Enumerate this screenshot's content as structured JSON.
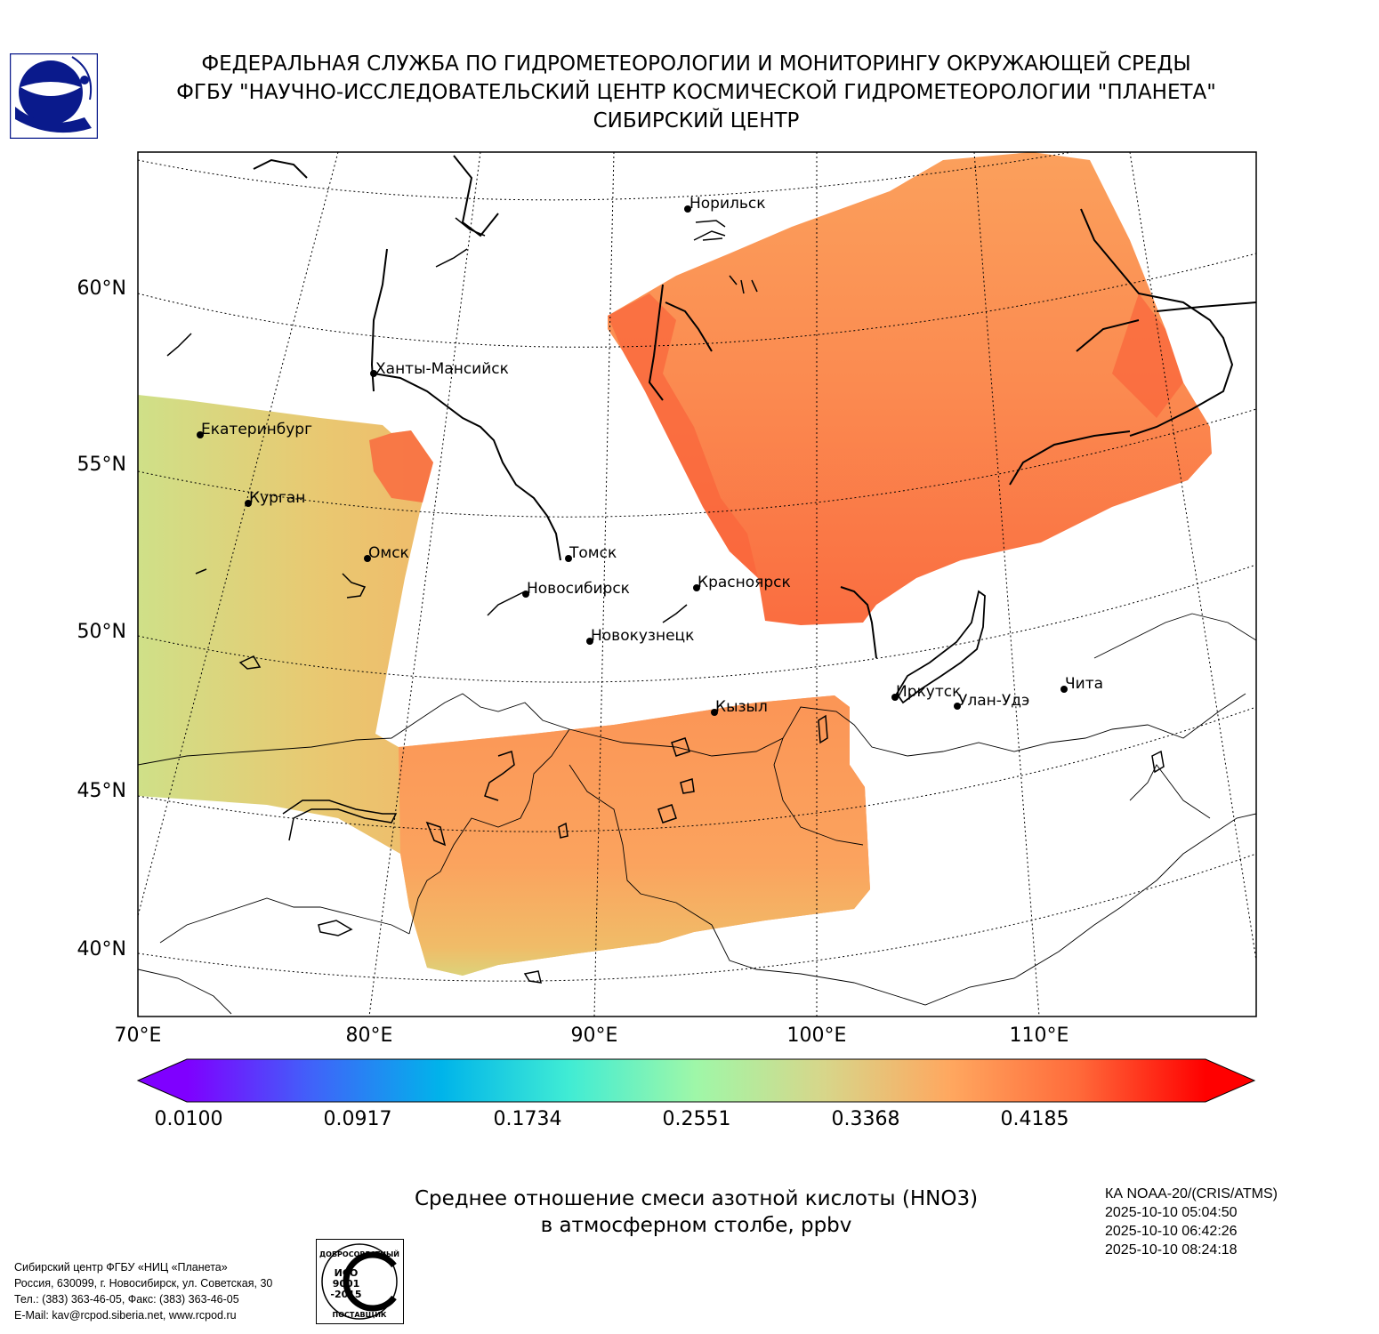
{
  "header": {
    "line1": "ФЕДЕРАЛЬНАЯ СЛУЖБА ПО ГИДРОМЕТЕОРОЛОГИИ И МОНИТОРИНГУ ОКРУЖАЮЩЕЙ СРЕДЫ",
    "line2": "ФГБУ \"НАУЧНО-ИССЛЕДОВАТЕЛЬСКИЙ ЦЕНТР КОСМИЧЕСКОЙ ГИДРОМЕТЕОРОЛОГИИ \"ПЛАНЕТА\"",
    "line3": "СИБИРСКИЙ ЦЕНТР"
  },
  "map": {
    "lat_labels": [
      "60°N",
      "55°N",
      "50°N",
      "45°N",
      "40°N"
    ],
    "lon_labels": [
      "70°E",
      "80°E",
      "90°E",
      "100°E",
      "110°E"
    ],
    "cities": [
      {
        "name": "Норильск"
      },
      {
        "name": "Ханты-Мансийск"
      },
      {
        "name": "Екатеринбург"
      },
      {
        "name": "Курган"
      },
      {
        "name": "Омск"
      },
      {
        "name": "Томск"
      },
      {
        "name": "Новосибирск"
      },
      {
        "name": "Красноярск"
      },
      {
        "name": "Новокузнецк"
      },
      {
        "name": "Кызыл"
      },
      {
        "name": "Иркутск"
      },
      {
        "name": "Улан-Удэ"
      },
      {
        "name": "Чита"
      }
    ]
  },
  "colorbar": {
    "ticks": [
      "0.0100",
      "0.0917",
      "0.1734",
      "0.2551",
      "0.3368",
      "0.4185"
    ],
    "colors": [
      "#7f00ff",
      "#3f64f9",
      "#00b4ea",
      "#40ecd4",
      "#9ff7a8",
      "#d7d68a",
      "#ffa75f",
      "#ff6a3a",
      "#ff0000"
    ]
  },
  "caption": {
    "line1": "Среднее отношение смеси азотной кислоты (HNO3)",
    "line2": "в атмосферном столбе, ppbv"
  },
  "satellite": {
    "name": "КА NOAA-20/(CRIS/ATMS)",
    "times": [
      "2025-10-10 05:04:50",
      "2025-10-10 06:42:26",
      "2025-10-10 08:24:18"
    ]
  },
  "footer": {
    "org": "Сибирский центр ФГБУ «НИЦ «Планета»",
    "address": "Россия, 630099, г. Новосибирск, ул. Советская, 30",
    "phone": "Тел.: (383) 363-46-05, Факс: (383) 363-46-05",
    "email": "E-Mail: kav@rcpod.siberia.net, www.rcpod.ru"
  },
  "certificate": {
    "top": "ДОБРОСОВЕСТНЫЙ",
    "mid1": "ИСО",
    "mid2": "9001",
    "mid3": "-2015",
    "bottom": "ПОСТАВЩИК"
  }
}
